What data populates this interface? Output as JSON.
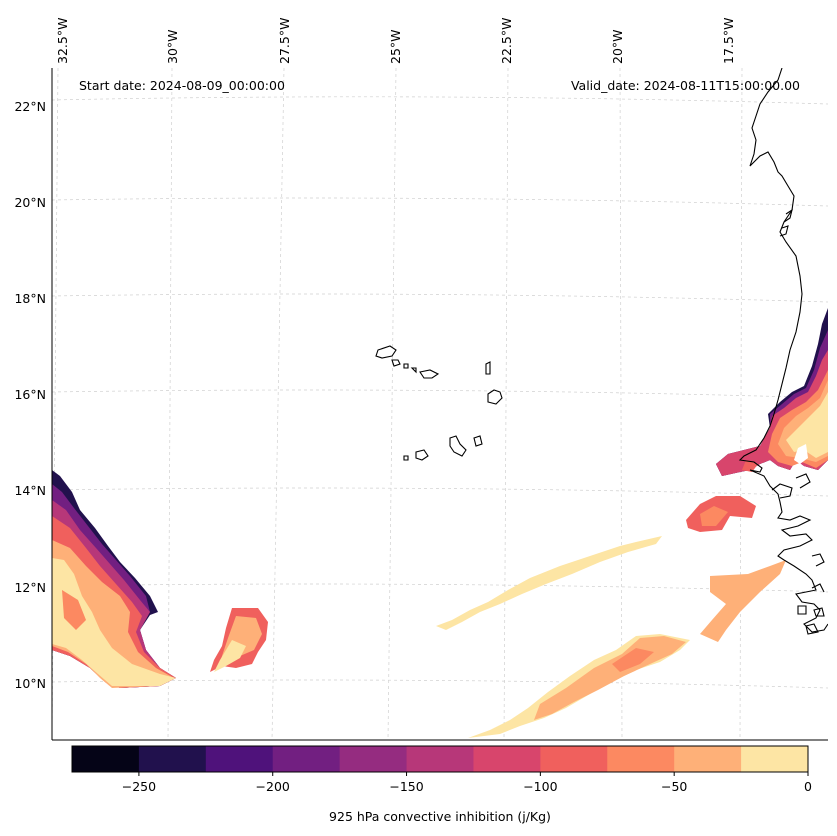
{
  "map": {
    "start_date": "Start date: 2024-08-09_00:00:00",
    "valid_date": "Valid_date: 2024-08-11T15:00:00.00",
    "lon_labels": [
      "32.5°W",
      "30°W",
      "27.5°W",
      "25°W",
      "22.5°W",
      "20°W",
      "17.5°W"
    ],
    "lat_labels": [
      "22°N",
      "20°N",
      "18°N",
      "16°N",
      "14°N",
      "12°N",
      "10°N"
    ]
  },
  "colorbar": {
    "title": "925 hPa convective inhibition (j/Kg)",
    "ticks": [
      "−250",
      "−200",
      "−150",
      "−100",
      "−50",
      "0"
    ],
    "colors": [
      "#050417",
      "#21114d",
      "#4f127b",
      "#721f81",
      "#952c80",
      "#b73779",
      "#d8456c",
      "#f0605d",
      "#fc8961",
      "#feb078",
      "#fde5a4"
    ]
  }
}
